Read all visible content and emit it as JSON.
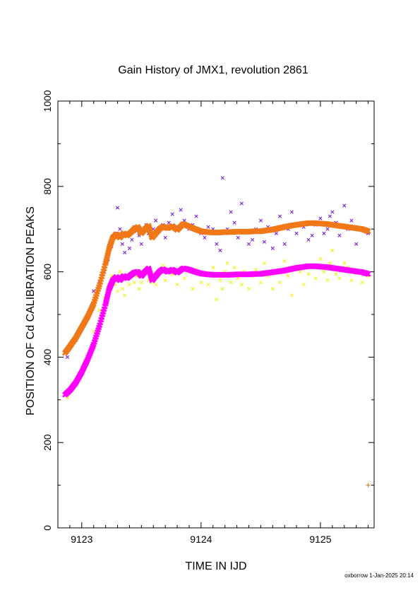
{
  "chart_data": {
    "type": "scatter",
    "title": "Gain History of JMX1, revolution 2861",
    "xlabel": "TIME IN IJD",
    "ylabel": "POSITION OF Cd CALIBRATION PEAKS",
    "footer": "oxborrow  1-Jan-2025 20:14",
    "xlim": [
      9122.8,
      9125.45
    ],
    "ylim": [
      0,
      1000
    ],
    "xticks": [
      9123,
      9124,
      9125
    ],
    "xtick_labels": [
      "9123",
      "9124",
      "9125"
    ],
    "yticks": [
      0,
      200,
      400,
      600,
      800,
      1000
    ],
    "ytick_labels": [
      "0",
      "200",
      "400",
      "600",
      "800",
      "1000"
    ],
    "grid": false,
    "series": [
      {
        "role": "upper-peak-scatter",
        "marker": "x",
        "color": "#7b1fd8",
        "x": [
          9122.88,
          9122.95,
          9123.02,
          9123.1,
          9123.15,
          9123.19,
          9123.22,
          9123.25,
          9123.28,
          9123.3,
          9123.32,
          9123.34,
          9123.36,
          9123.38,
          9123.4,
          9123.42,
          9123.44,
          9123.46,
          9123.48,
          9123.5,
          9123.52,
          9123.54,
          9123.56,
          9123.58,
          9123.6,
          9123.62,
          9123.65,
          9123.68,
          9123.7,
          9123.73,
          9123.76,
          9123.8,
          9123.83,
          9123.86,
          9123.9,
          9123.93,
          9123.96,
          9124.0,
          9124.03,
          9124.06,
          9124.1,
          9124.13,
          9124.16,
          9124.18,
          9124.2,
          9124.22,
          9124.25,
          9124.28,
          9124.31,
          9124.34,
          9124.36,
          9124.4,
          9124.43,
          9124.46,
          9124.5,
          9124.53,
          9124.56,
          9124.6,
          9124.63,
          9124.66,
          9124.7,
          9124.73,
          9124.76,
          9124.8,
          9124.83,
          9124.86,
          9124.9,
          9124.93,
          9124.96,
          9125.0,
          9125.03,
          9125.06,
          9125.08,
          9125.1,
          9125.13,
          9125.16,
          9125.2,
          9125.23,
          9125.26,
          9125.3,
          9125.35,
          9125.4
        ],
        "y": [
          400,
          440,
          480,
          555,
          575,
          600,
          630,
          660,
          690,
          750,
          700,
          665,
          645,
          685,
          655,
          675,
          705,
          695,
          685,
          665,
          700,
          710,
          690,
          680,
          700,
          720,
          695,
          710,
          680,
          715,
          735,
          700,
          745,
          720,
          700,
          710,
          730,
          690,
          680,
          705,
          700,
          665,
          650,
          820,
          690,
          700,
          740,
          715,
          680,
          760,
          695,
          665,
          675,
          700,
          720,
          670,
          705,
          655,
          690,
          730,
          665,
          700,
          740,
          690,
          710,
          705,
          675,
          685,
          710,
          725,
          690,
          700,
          730,
          740,
          715,
          685,
          755,
          700,
          720,
          665,
          700,
          690
        ]
      },
      {
        "role": "lower-peak-scatter",
        "marker": "x",
        "color": "#f2f21e",
        "x": [
          9122.88,
          9122.95,
          9123.02,
          9123.1,
          9123.15,
          9123.19,
          9123.22,
          9123.25,
          9123.28,
          9123.3,
          9123.32,
          9123.34,
          9123.36,
          9123.38,
          9123.4,
          9123.42,
          9123.44,
          9123.46,
          9123.48,
          9123.5,
          9123.52,
          9123.54,
          9123.56,
          9123.58,
          9123.6,
          9123.62,
          9123.65,
          9123.68,
          9123.7,
          9123.73,
          9123.76,
          9123.8,
          9123.83,
          9123.86,
          9123.9,
          9123.93,
          9123.96,
          9124.0,
          9124.03,
          9124.06,
          9124.1,
          9124.13,
          9124.16,
          9124.18,
          9124.2,
          9124.22,
          9124.25,
          9124.28,
          9124.31,
          9124.34,
          9124.36,
          9124.4,
          9124.43,
          9124.46,
          9124.5,
          9124.53,
          9124.56,
          9124.6,
          9124.63,
          9124.66,
          9124.7,
          9124.73,
          9124.76,
          9124.8,
          9124.83,
          9124.86,
          9124.9,
          9124.93,
          9124.96,
          9125.0,
          9125.03,
          9125.06,
          9125.08,
          9125.1,
          9125.13,
          9125.16,
          9125.2,
          9125.23,
          9125.26,
          9125.3,
          9125.35,
          9125.4
        ],
        "y": [
          305,
          340,
          390,
          460,
          510,
          540,
          565,
          590,
          570,
          555,
          600,
          560,
          545,
          585,
          570,
          600,
          575,
          590,
          560,
          575,
          600,
          610,
          580,
          575,
          595,
          570,
          600,
          615,
          580,
          605,
          595,
          570,
          610,
          585,
          600,
          560,
          605,
          575,
          595,
          570,
          610,
          535,
          580,
          560,
          600,
          620,
          575,
          610,
          585,
          570,
          600,
          560,
          590,
          605,
          575,
          620,
          590,
          560,
          600,
          575,
          625,
          590,
          545,
          610,
          600,
          570,
          595,
          615,
          585,
          630,
          600,
          580,
          620,
          650,
          595,
          585,
          620,
          610,
          580,
          600,
          575,
          590
        ]
      },
      {
        "role": "upper-peak-fit",
        "marker": "x",
        "color": "#f07818",
        "x": [
          9122.86,
          9122.9,
          9122.95,
          9123.0,
          9123.05,
          9123.1,
          9123.15,
          9123.2,
          9123.23,
          9123.26,
          9123.29,
          9123.32,
          9123.35,
          9123.38,
          9123.41,
          9123.44,
          9123.47,
          9123.5,
          9123.53,
          9123.56,
          9123.59,
          9123.62,
          9123.65,
          9123.68,
          9123.72,
          9123.76,
          9123.8,
          9123.85,
          9123.9,
          9123.95,
          9124.0,
          9124.05,
          9124.1,
          9124.15,
          9124.2,
          9124.25,
          9124.3,
          9124.35,
          9124.4,
          9124.45,
          9124.5,
          9124.55,
          9124.6,
          9124.65,
          9124.7,
          9124.75,
          9124.8,
          9124.85,
          9124.9,
          9124.95,
          9125.0,
          9125.05,
          9125.1,
          9125.15,
          9125.2,
          9125.25,
          9125.3,
          9125.35,
          9125.4
        ],
        "y": [
          410,
          425,
          445,
          470,
          495,
          525,
          570,
          620,
          655,
          680,
          688,
          680,
          690,
          685,
          692,
          700,
          705,
          690,
          700,
          708,
          680,
          690,
          700,
          706,
          702,
          707,
          698,
          712,
          706,
          700,
          695,
          693,
          692,
          692,
          693,
          693,
          694,
          694,
          694,
          695,
          695,
          697,
          699,
          702,
          705,
          708,
          710,
          712,
          714,
          714,
          713,
          712,
          710,
          708,
          706,
          704,
          702,
          700,
          695
        ]
      },
      {
        "role": "lower-peak-fit",
        "marker": "x",
        "color": "#ff00ff",
        "x": [
          9122.86,
          9122.9,
          9122.95,
          9123.0,
          9123.05,
          9123.1,
          9123.15,
          9123.2,
          9123.23,
          9123.26,
          9123.29,
          9123.32,
          9123.35,
          9123.38,
          9123.41,
          9123.44,
          9123.47,
          9123.5,
          9123.53,
          9123.56,
          9123.59,
          9123.62,
          9123.65,
          9123.68,
          9123.72,
          9123.76,
          9123.8,
          9123.85,
          9123.9,
          9123.95,
          9124.0,
          9124.05,
          9124.1,
          9124.15,
          9124.2,
          9124.25,
          9124.3,
          9124.35,
          9124.4,
          9124.45,
          9124.5,
          9124.55,
          9124.6,
          9124.65,
          9124.7,
          9124.75,
          9124.8,
          9124.85,
          9124.9,
          9124.95,
          9125.0,
          9125.05,
          9125.1,
          9125.15,
          9125.2,
          9125.25,
          9125.3,
          9125.35,
          9125.4
        ],
        "y": [
          312,
          322,
          340,
          365,
          395,
          430,
          475,
          525,
          560,
          580,
          588,
          580,
          590,
          585,
          592,
          598,
          600,
          590,
          600,
          608,
          580,
          590,
          600,
          606,
          600,
          605,
          598,
          608,
          605,
          600,
          596,
          594,
          593,
          593,
          593,
          593,
          594,
          594,
          594,
          595,
          595,
          597,
          599,
          601,
          603,
          606,
          609,
          611,
          613,
          613,
          612,
          611,
          609,
          607,
          605,
          603,
          601,
          599,
          595
        ]
      },
      {
        "role": "outlier",
        "marker": "+",
        "color": "#e07818",
        "x": [
          9125.4
        ],
        "y": [
          100
        ]
      }
    ]
  }
}
